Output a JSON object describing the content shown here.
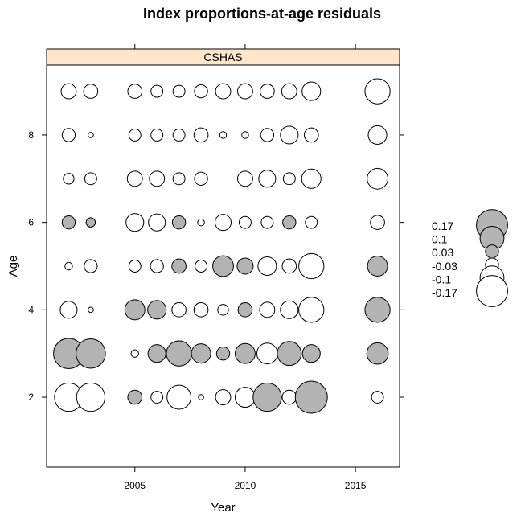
{
  "chart_data": {
    "type": "bubble",
    "title": "Index proportions-at-age residuals",
    "panel_label": "CSHAS",
    "xlabel": "Year",
    "ylabel": "Age",
    "xlim": [
      2001,
      2017
    ],
    "ylim": [
      0.4,
      9.6
    ],
    "x_ticks": [
      2005,
      2010,
      2015
    ],
    "y_ticks": [
      2,
      4,
      6,
      8
    ],
    "colors": {
      "positive_fill": "#b3b3b3",
      "negative_fill": "#ffffff",
      "outline": "#000000",
      "strip_fill": "#ffe5cc"
    },
    "legend": [
      {
        "label": "0.17",
        "value": 0.17
      },
      {
        "label": "0.1",
        "value": 0.1
      },
      {
        "label": "0.03",
        "value": 0.03
      },
      {
        "label": "-0.03",
        "value": -0.03
      },
      {
        "label": "-0.1",
        "value": -0.1
      },
      {
        "label": "-0.17",
        "value": -0.17
      }
    ],
    "points": [
      {
        "year": 2002,
        "age": 9,
        "value": -0.04
      },
      {
        "year": 2003,
        "age": 9,
        "value": -0.035
      },
      {
        "year": 2005,
        "age": 9,
        "value": -0.035
      },
      {
        "year": 2006,
        "age": 9,
        "value": -0.025
      },
      {
        "year": 2007,
        "age": 9,
        "value": -0.025
      },
      {
        "year": 2008,
        "age": 9,
        "value": -0.03
      },
      {
        "year": 2009,
        "age": 9,
        "value": -0.04
      },
      {
        "year": 2010,
        "age": 9,
        "value": -0.04
      },
      {
        "year": 2011,
        "age": 9,
        "value": -0.035
      },
      {
        "year": 2012,
        "age": 9,
        "value": -0.04
      },
      {
        "year": 2013,
        "age": 9,
        "value": -0.06
      },
      {
        "year": 2016,
        "age": 9,
        "value": -0.11
      },
      {
        "year": 2002,
        "age": 8,
        "value": -0.03
      },
      {
        "year": 2003,
        "age": 8,
        "value": -0.005
      },
      {
        "year": 2005,
        "age": 8,
        "value": -0.025
      },
      {
        "year": 2006,
        "age": 8,
        "value": -0.025
      },
      {
        "year": 2007,
        "age": 8,
        "value": -0.025
      },
      {
        "year": 2008,
        "age": 8,
        "value": -0.035
      },
      {
        "year": 2009,
        "age": 8,
        "value": -0.008
      },
      {
        "year": 2010,
        "age": 8,
        "value": -0.008
      },
      {
        "year": 2011,
        "age": 8,
        "value": -0.03
      },
      {
        "year": 2012,
        "age": 8,
        "value": -0.055
      },
      {
        "year": 2013,
        "age": 8,
        "value": -0.035
      },
      {
        "year": 2016,
        "age": 8,
        "value": -0.06
      },
      {
        "year": 2002,
        "age": 7,
        "value": -0.02
      },
      {
        "year": 2003,
        "age": 7,
        "value": -0.025
      },
      {
        "year": 2005,
        "age": 7,
        "value": -0.04
      },
      {
        "year": 2006,
        "age": 7,
        "value": -0.04
      },
      {
        "year": 2007,
        "age": 7,
        "value": -0.025
      },
      {
        "year": 2008,
        "age": 7,
        "value": -0.03
      },
      {
        "year": 2010,
        "age": 7,
        "value": -0.04
      },
      {
        "year": 2011,
        "age": 7,
        "value": -0.05
      },
      {
        "year": 2012,
        "age": 7,
        "value": -0.025
      },
      {
        "year": 2013,
        "age": 7,
        "value": -0.065
      },
      {
        "year": 2016,
        "age": 7,
        "value": -0.075
      },
      {
        "year": 2002,
        "age": 6,
        "value": 0.03
      },
      {
        "year": 2003,
        "age": 6,
        "value": 0.015
      },
      {
        "year": 2005,
        "age": 6,
        "value": -0.055
      },
      {
        "year": 2006,
        "age": 6,
        "value": -0.05
      },
      {
        "year": 2007,
        "age": 6,
        "value": 0.03
      },
      {
        "year": 2008,
        "age": 6,
        "value": -0.008
      },
      {
        "year": 2009,
        "age": 6,
        "value": -0.045
      },
      {
        "year": 2010,
        "age": 6,
        "value": -0.025
      },
      {
        "year": 2011,
        "age": 6,
        "value": -0.025
      },
      {
        "year": 2012,
        "age": 6,
        "value": 0.03
      },
      {
        "year": 2013,
        "age": 6,
        "value": -0.025
      },
      {
        "year": 2016,
        "age": 6,
        "value": -0.035
      },
      {
        "year": 2002,
        "age": 5,
        "value": -0.01
      },
      {
        "year": 2003,
        "age": 5,
        "value": -0.03
      },
      {
        "year": 2005,
        "age": 5,
        "value": -0.025
      },
      {
        "year": 2006,
        "age": 5,
        "value": -0.03
      },
      {
        "year": 2007,
        "age": 5,
        "value": 0.035
      },
      {
        "year": 2008,
        "age": 5,
        "value": -0.025
      },
      {
        "year": 2009,
        "age": 5,
        "value": 0.075
      },
      {
        "year": 2010,
        "age": 5,
        "value": 0.045
      },
      {
        "year": 2011,
        "age": 5,
        "value": -0.06
      },
      {
        "year": 2012,
        "age": 5,
        "value": -0.035
      },
      {
        "year": 2013,
        "age": 5,
        "value": -0.11
      },
      {
        "year": 2016,
        "age": 5,
        "value": 0.07
      },
      {
        "year": 2002,
        "age": 4,
        "value": -0.05
      },
      {
        "year": 2003,
        "age": 4,
        "value": -0.005
      },
      {
        "year": 2005,
        "age": 4,
        "value": 0.07
      },
      {
        "year": 2006,
        "age": 4,
        "value": 0.06
      },
      {
        "year": 2007,
        "age": 4,
        "value": -0.035
      },
      {
        "year": 2008,
        "age": 4,
        "value": -0.035
      },
      {
        "year": 2009,
        "age": 4,
        "value": -0.02
      },
      {
        "year": 2010,
        "age": 4,
        "value": 0.035
      },
      {
        "year": 2011,
        "age": 4,
        "value": -0.04
      },
      {
        "year": 2012,
        "age": 4,
        "value": -0.055
      },
      {
        "year": 2013,
        "age": 4,
        "value": -0.11
      },
      {
        "year": 2016,
        "age": 4,
        "value": 0.11
      },
      {
        "year": 2002,
        "age": 3,
        "value": 0.16
      },
      {
        "year": 2003,
        "age": 3,
        "value": 0.15
      },
      {
        "year": 2005,
        "age": 3,
        "value": -0.01
      },
      {
        "year": 2006,
        "age": 3,
        "value": 0.055
      },
      {
        "year": 2007,
        "age": 3,
        "value": 0.11
      },
      {
        "year": 2008,
        "age": 3,
        "value": 0.065
      },
      {
        "year": 2009,
        "age": 3,
        "value": 0.03
      },
      {
        "year": 2010,
        "age": 3,
        "value": 0.07
      },
      {
        "year": 2011,
        "age": 3,
        "value": -0.075
      },
      {
        "year": 2012,
        "age": 3,
        "value": 0.1
      },
      {
        "year": 2013,
        "age": 3,
        "value": 0.055
      },
      {
        "year": 2016,
        "age": 3,
        "value": 0.08
      },
      {
        "year": 2002,
        "age": 2,
        "value": -0.14
      },
      {
        "year": 2003,
        "age": 2,
        "value": -0.14
      },
      {
        "year": 2005,
        "age": 2,
        "value": 0.035
      },
      {
        "year": 2006,
        "age": 2,
        "value": -0.025
      },
      {
        "year": 2007,
        "age": 2,
        "value": -0.1
      },
      {
        "year": 2008,
        "age": 2,
        "value": -0.005
      },
      {
        "year": 2009,
        "age": 2,
        "value": -0.04
      },
      {
        "year": 2010,
        "age": 2,
        "value": -0.07
      },
      {
        "year": 2011,
        "age": 2,
        "value": 0.14
      },
      {
        "year": 2012,
        "age": 2,
        "value": -0.035
      },
      {
        "year": 2013,
        "age": 2,
        "value": 0.18
      },
      {
        "year": 2016,
        "age": 2,
        "value": -0.025
      }
    ]
  }
}
